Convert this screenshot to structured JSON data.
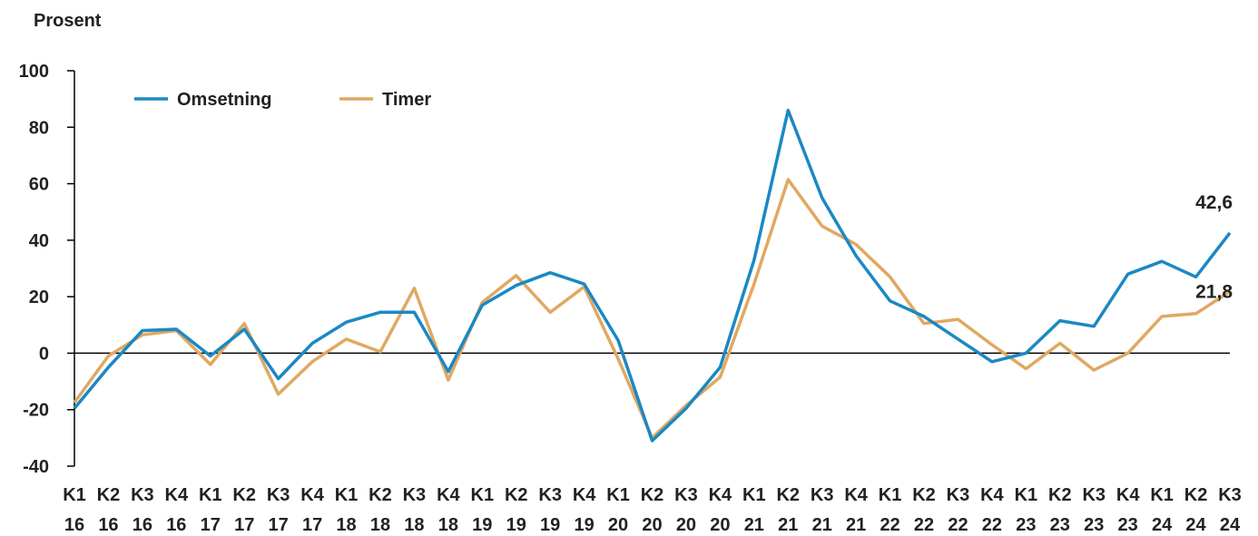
{
  "chart_data": {
    "type": "line",
    "ylabel": "Prosent",
    "ylim": [
      -40,
      100
    ],
    "yticks": [
      -40,
      -20,
      0,
      20,
      40,
      60,
      80,
      100
    ],
    "categories": [
      [
        "K1",
        "16"
      ],
      [
        "K2",
        "16"
      ],
      [
        "K3",
        "16"
      ],
      [
        "K4",
        "16"
      ],
      [
        "K1",
        "17"
      ],
      [
        "K2",
        "17"
      ],
      [
        "K3",
        "17"
      ],
      [
        "K4",
        "17"
      ],
      [
        "K1",
        "18"
      ],
      [
        "K2",
        "18"
      ],
      [
        "K3",
        "18"
      ],
      [
        "K4",
        "18"
      ],
      [
        "K1",
        "19"
      ],
      [
        "K2",
        "19"
      ],
      [
        "K3",
        "19"
      ],
      [
        "K4",
        "19"
      ],
      [
        "K1",
        "20"
      ],
      [
        "K2",
        "20"
      ],
      [
        "K3",
        "20"
      ],
      [
        "K4",
        "20"
      ],
      [
        "K1",
        "21"
      ],
      [
        "K2",
        "21"
      ],
      [
        "K3",
        "21"
      ],
      [
        "K4",
        "21"
      ],
      [
        "K1",
        "22"
      ],
      [
        "K2",
        "22"
      ],
      [
        "K3",
        "22"
      ],
      [
        "K4",
        "22"
      ],
      [
        "K1",
        "23"
      ],
      [
        "K2",
        "23"
      ],
      [
        "K3",
        "23"
      ],
      [
        "K4",
        "23"
      ],
      [
        "K1",
        "24"
      ],
      [
        "K2",
        "24"
      ],
      [
        "K3",
        "24"
      ]
    ],
    "legend_position": "top-left",
    "grid": false,
    "series": [
      {
        "name": "Omsetning",
        "color": "#1b88c4",
        "values": [
          -19.5,
          -5,
          8,
          8.5,
          -1,
          8.5,
          -9,
          3.5,
          11,
          14.5,
          14.5,
          -6.5,
          17,
          24,
          28.5,
          24.5,
          4.5,
          -31,
          -19.5,
          -5,
          33,
          86,
          55,
          34.5,
          18.5,
          13,
          5,
          -3,
          0,
          11.5,
          9.5,
          28,
          32.5,
          27,
          42.6
        ]
      },
      {
        "name": "Timer",
        "color": "#e0a862",
        "values": [
          -17.5,
          -1,
          6.5,
          8,
          -4,
          10.5,
          -14.5,
          -3,
          5,
          0.5,
          23,
          -9.5,
          18,
          27.5,
          14.5,
          23.5,
          -2,
          -30,
          -18.5,
          -8.5,
          24.5,
          61.5,
          45,
          38.5,
          27,
          10.5,
          12,
          3,
          -5.5,
          3.5,
          -6,
          0,
          13,
          14,
          21.8
        ]
      }
    ],
    "end_labels": [
      "42,6",
      "21,8"
    ]
  }
}
